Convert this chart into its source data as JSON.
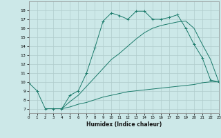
{
  "xlabel": "Humidex (Indice chaleur)",
  "xlim": [
    0,
    23
  ],
  "ylim": [
    6.5,
    19
  ],
  "yticks": [
    7,
    8,
    9,
    10,
    11,
    12,
    13,
    14,
    15,
    16,
    17,
    18
  ],
  "xticks": [
    0,
    1,
    2,
    3,
    4,
    5,
    6,
    7,
    8,
    9,
    10,
    11,
    12,
    13,
    14,
    15,
    16,
    17,
    18,
    19,
    20,
    21,
    22,
    23
  ],
  "bg_color": "#cce8e8",
  "line_color": "#1a7a6a",
  "grid_color": "#b0cccc",
  "curve_a_x": [
    0,
    1,
    2,
    3,
    4,
    5,
    6,
    7,
    8,
    9,
    10,
    11,
    12,
    13,
    14,
    15,
    16,
    17,
    18,
    19,
    20,
    21,
    22,
    23
  ],
  "curve_a_y": [
    9.9,
    9.0,
    7.0,
    7.0,
    7.0,
    8.5,
    9.0,
    11.0,
    13.8,
    16.8,
    17.7,
    17.4,
    17.0,
    17.9,
    17.9,
    17.0,
    17.0,
    17.2,
    17.5,
    16.0,
    14.2,
    12.7,
    10.2,
    10.0
  ],
  "curve_b_x": [
    2,
    3,
    4,
    5,
    6,
    7,
    8,
    9,
    10,
    11,
    12,
    13,
    14,
    15,
    16,
    17,
    18,
    19,
    20,
    21,
    22,
    23
  ],
  "curve_b_y": [
    7.0,
    7.0,
    7.0,
    7.8,
    8.5,
    9.5,
    10.5,
    11.5,
    12.5,
    13.2,
    14.0,
    14.8,
    15.5,
    16.0,
    16.3,
    16.5,
    16.7,
    16.8,
    16.0,
    14.2,
    12.5,
    10.0
  ],
  "curve_c_x": [
    2,
    3,
    4,
    5,
    6,
    7,
    8,
    9,
    10,
    11,
    12,
    13,
    14,
    15,
    16,
    17,
    18,
    19,
    20,
    21,
    22,
    23
  ],
  "curve_c_y": [
    7.0,
    7.0,
    7.0,
    7.2,
    7.5,
    7.7,
    8.0,
    8.3,
    8.5,
    8.7,
    8.9,
    9.0,
    9.1,
    9.2,
    9.3,
    9.4,
    9.5,
    9.6,
    9.7,
    9.9,
    10.0,
    10.0
  ]
}
